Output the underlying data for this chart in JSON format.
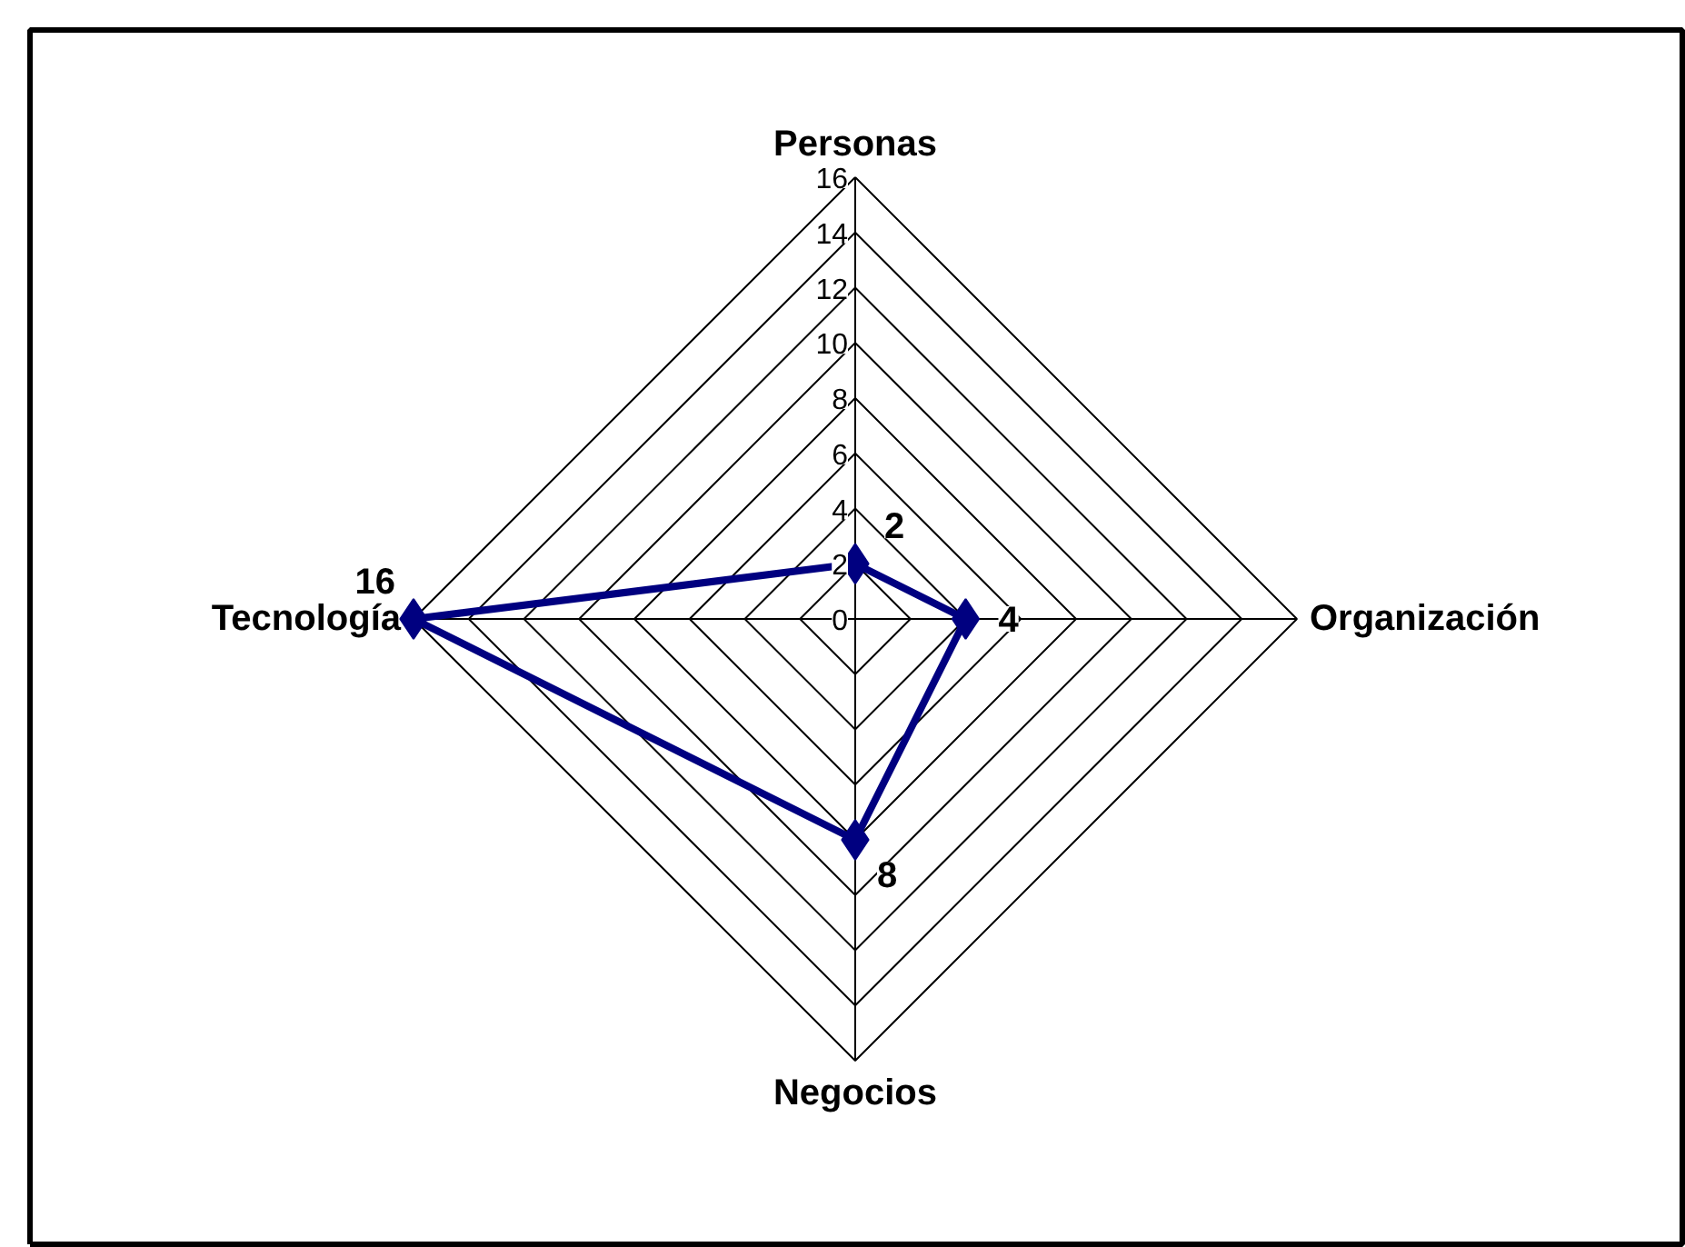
{
  "chart_data": {
    "type": "radar",
    "categories": [
      "Personas",
      "Organización",
      "Negocios",
      "Tecnología"
    ],
    "series": [
      {
        "color": "#000080",
        "values": [
          2,
          4,
          8,
          16
        ]
      }
    ],
    "ylim": [
      0,
      16
    ],
    "yticks": [
      0,
      2,
      4,
      6,
      8,
      10,
      12,
      14,
      16
    ],
    "data_labels": true,
    "marker": "diamond",
    "line_style": "solid",
    "grid": true
  }
}
